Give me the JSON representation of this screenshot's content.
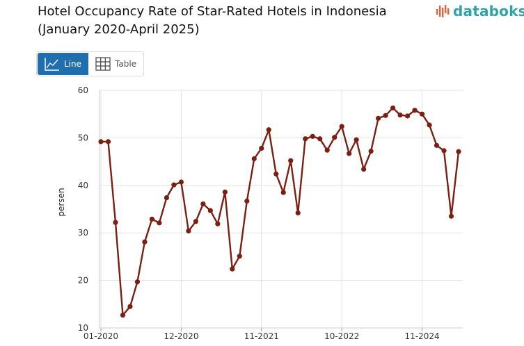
{
  "header": {
    "title_line1": "Hotel Occupancy Rate of Star-Rated Hotels in Indonesia",
    "title_line2": "(January 2020-April 2025)"
  },
  "brand": {
    "name": "databoks",
    "color": "#2fa4a8",
    "mark_color": "#e8603c",
    "icon": "databoks-logo-icon"
  },
  "view_toggle": {
    "line_label": "Line",
    "table_label": "Table",
    "active": "line",
    "active_color": "#1f6fae"
  },
  "chart_data": {
    "type": "line",
    "ylabel": "persen",
    "ylim": [
      10,
      60
    ],
    "yticks": [
      10,
      20,
      30,
      40,
      50,
      60
    ],
    "xtick_labels": [
      "01-2020",
      "12-2020",
      "11-2021",
      "10-2022",
      "11-2024"
    ],
    "xtick_indices": [
      0,
      11,
      22,
      33,
      44
    ],
    "grid": true,
    "line_color": "#7a1f12",
    "series": [
      {
        "values": [
          49.2,
          49.2,
          32.2,
          12.7,
          14.5,
          19.7,
          28.1,
          32.9,
          32.1,
          37.4,
          40.1,
          40.7,
          30.4,
          32.4,
          36.1,
          34.7,
          31.9,
          38.6,
          22.4,
          25.1,
          36.7,
          45.6,
          47.8,
          51.7,
          42.4,
          38.5,
          45.2,
          34.2,
          49.8,
          50.3,
          49.8,
          47.4,
          50.1,
          52.4,
          46.7,
          49.6,
          43.4,
          47.2,
          54.1,
          54.7,
          56.3,
          54.8,
          54.6,
          55.8,
          55.0,
          52.7,
          48.4,
          47.3,
          33.5,
          47.1
        ]
      }
    ]
  }
}
